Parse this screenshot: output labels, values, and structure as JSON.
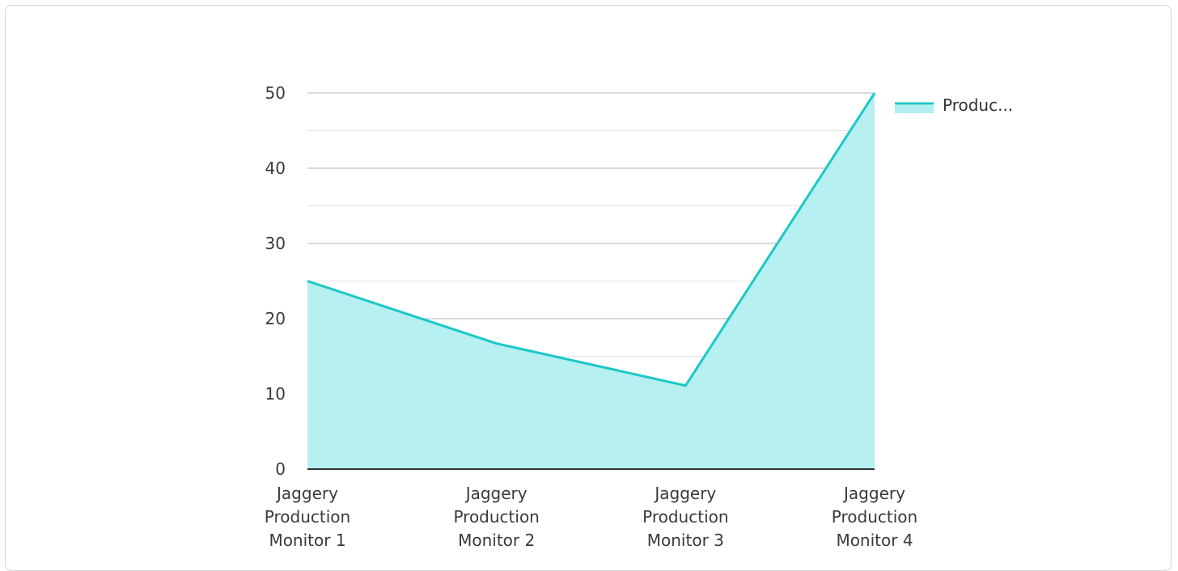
{
  "chart_data": {
    "type": "area",
    "categories": [
      "Jaggery Production Monitor 1",
      "Jaggery Production Monitor 2",
      "Jaggery Production Monitor 3",
      "Jaggery Production Monitor 4"
    ],
    "category_lines": [
      [
        "Jaggery",
        "Production",
        "Monitor 1"
      ],
      [
        "Jaggery",
        "Production",
        "Monitor 2"
      ],
      [
        "Jaggery",
        "Production",
        "Monitor 3"
      ],
      [
        "Jaggery",
        "Production",
        "Monitor 4"
      ]
    ],
    "series": [
      {
        "legend_label": "Produc...",
        "values": [
          25,
          16.7,
          11.1,
          50
        ],
        "line_color": "#1cc8c8",
        "fill_color": "#b2efef"
      }
    ],
    "y_ticks": [
      0,
      10,
      20,
      30,
      40,
      50
    ],
    "ylim": [
      0,
      50
    ],
    "grid": true,
    "legend_position": "top-right",
    "colors": {
      "major_grid": "#c4c4c4",
      "minor_grid": "#e6e6e6",
      "axis": "#333333"
    }
  }
}
